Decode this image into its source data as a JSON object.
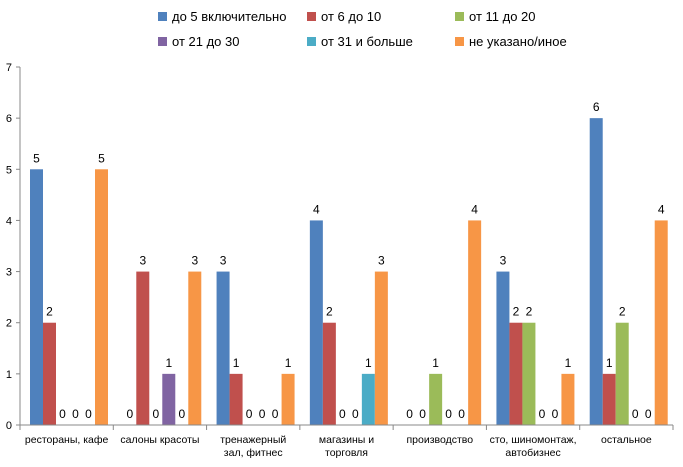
{
  "chart_data": {
    "type": "bar",
    "categories": [
      [
        "рестораны, кафе"
      ],
      [
        "салоны красоты"
      ],
      [
        "тренажерный",
        "зал, фитнес"
      ],
      [
        "магазины и",
        "торговля"
      ],
      [
        "производство"
      ],
      [
        "сто, шиномонтаж,",
        "автобизнес"
      ],
      [
        "остальное"
      ]
    ],
    "series": [
      {
        "name": "до 5 включительно",
        "color": "#4F81BD",
        "values": [
          5,
          0,
          3,
          4,
          0,
          3,
          6
        ]
      },
      {
        "name": "от 6 до 10",
        "color": "#C0504D",
        "values": [
          2,
          3,
          1,
          2,
          0,
          2,
          1
        ]
      },
      {
        "name": "от 11 до 20",
        "color": "#9BBB59",
        "values": [
          0,
          0,
          0,
          0,
          1,
          2,
          2
        ]
      },
      {
        "name": "от 21 до 30",
        "color": "#8064A2",
        "values": [
          0,
          1,
          0,
          0,
          0,
          0,
          0
        ]
      },
      {
        "name": "от 31 и больше",
        "color": "#4BACC6",
        "values": [
          0,
          0,
          0,
          1,
          0,
          0,
          0
        ]
      },
      {
        "name": "не указано/иное",
        "color": "#F79646",
        "values": [
          5,
          3,
          1,
          3,
          4,
          1,
          4
        ]
      }
    ],
    "ylim": [
      0,
      7
    ],
    "yticks": [
      0,
      1,
      2,
      3,
      4,
      5,
      6,
      7
    ],
    "legend_position": "top",
    "grid": false
  }
}
